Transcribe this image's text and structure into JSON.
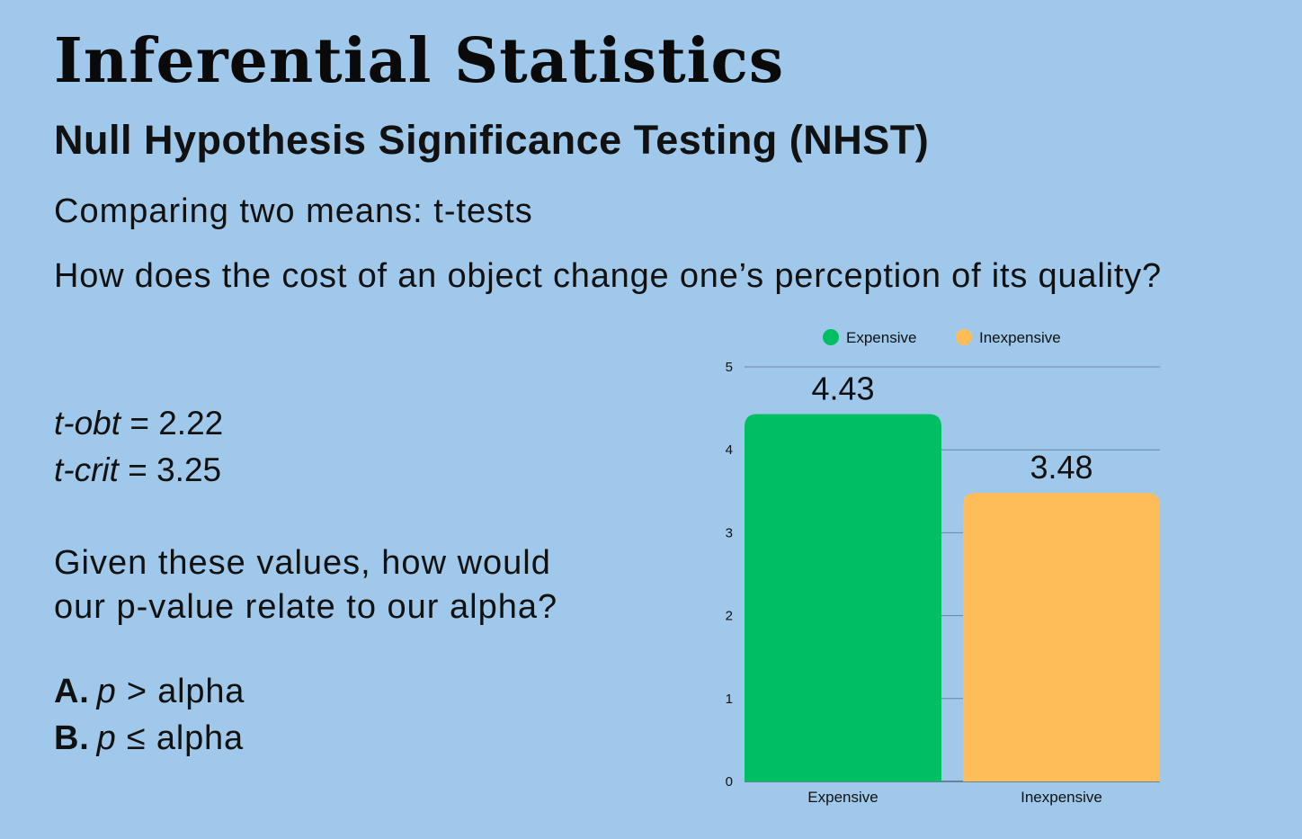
{
  "slide": {
    "title": "Inferential Statistics",
    "subtitle": "Null Hypothesis Significance Testing (NHST)",
    "topic": "Comparing two means: t-tests",
    "question": "How does the cost of an object change one’s perception of its quality?",
    "stats": [
      {
        "label": "t-obt",
        "eq": " = ",
        "value": "2.22"
      },
      {
        "label": "t-crit",
        "eq": " = ",
        "value": "3.25"
      }
    ],
    "prompt_line1": "Given these values, how would",
    "prompt_line2": "our p-value relate to our alpha?",
    "options": [
      {
        "letter": "A.",
        "p": "p",
        "rel": " > alpha"
      },
      {
        "letter": "B.",
        "p": "p",
        "rel": " ≤ alpha"
      }
    ]
  },
  "chart_data": {
    "type": "bar",
    "categories": [
      "Expensive",
      "Inexpensive"
    ],
    "values": [
      4.43,
      3.48
    ],
    "data_labels": [
      "4.43",
      "3.48"
    ],
    "colors": [
      "#00bf63",
      "#ffbd59"
    ],
    "legend": [
      "Expensive",
      "Inexpensive"
    ],
    "legend_position": "top-center",
    "ylim": [
      0,
      5
    ],
    "yticks": [
      "0",
      "1",
      "2",
      "3",
      "4",
      "5"
    ],
    "grid": true,
    "title": "",
    "xlabel": "",
    "ylabel": ""
  }
}
